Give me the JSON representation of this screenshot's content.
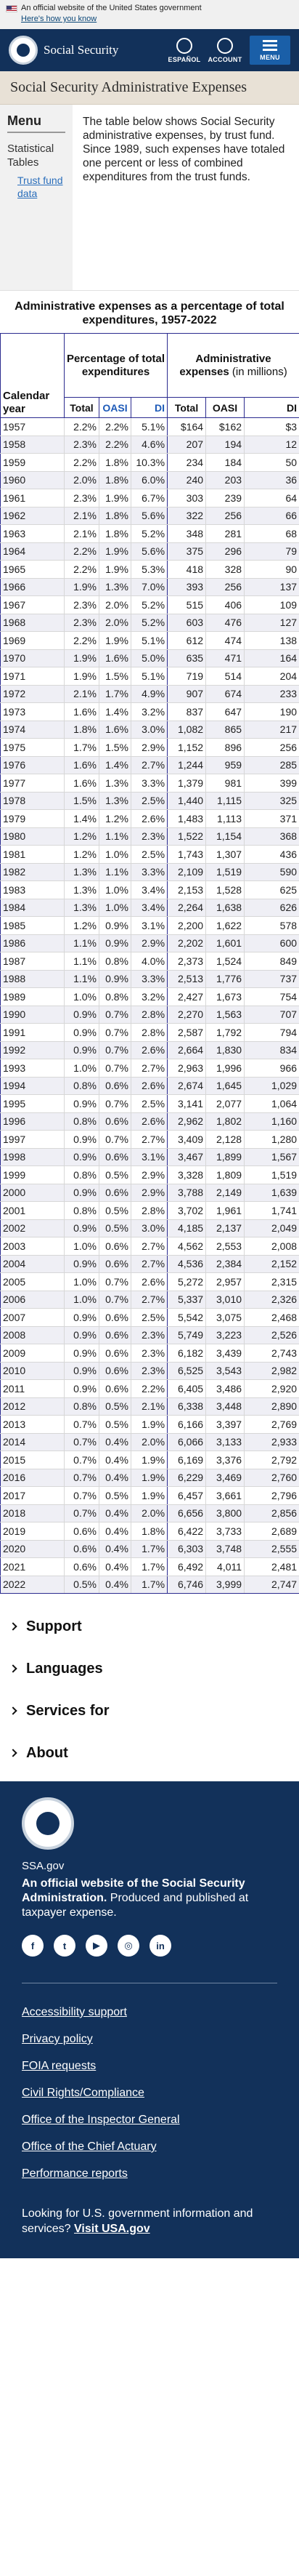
{
  "gov_banner": {
    "text": "An official website of the United States government",
    "link": "Here's how you know"
  },
  "header": {
    "logo_text": "Social Security",
    "espanol": "ESPAÑOL",
    "account": "ACCOUNT",
    "menu": "MENU"
  },
  "page_title": "Social Security Administrative Expenses",
  "sidebar": {
    "title": "Menu",
    "section": "Statistical Tables",
    "link": "Trust fund data"
  },
  "intro": "The table below shows Social Security administrative expenses, by trust fund. Since 1989, such expenses have totaled one percent or less of combined expenditures from the trust funds.",
  "table": {
    "caption": "Administrative expenses as a percentage of total expenditures, 1957-2022",
    "header_year": "Calendar year",
    "header_pct": "Percentage of total expenditures",
    "header_exp": "Administrative expenses",
    "header_exp_note": "(in millions)",
    "sub": [
      "Total",
      "OASI",
      "DI",
      "Total",
      "OASI",
      "DI"
    ],
    "rows": [
      [
        "1957",
        "2.2%",
        "2.2%",
        "5.1%",
        "$164",
        "$162",
        "$3"
      ],
      [
        "1958",
        "2.3%",
        "2.2%",
        "4.6%",
        "207",
        "194",
        "12"
      ],
      [
        "1959",
        "2.2%",
        "1.8%",
        "10.3%",
        "234",
        "184",
        "50"
      ],
      [
        "1960",
        "2.0%",
        "1.8%",
        "6.0%",
        "240",
        "203",
        "36"
      ],
      [
        "1961",
        "2.3%",
        "1.9%",
        "6.7%",
        "303",
        "239",
        "64"
      ],
      [
        "1962",
        "2.1%",
        "1.8%",
        "5.6%",
        "322",
        "256",
        "66"
      ],
      [
        "1963",
        "2.1%",
        "1.8%",
        "5.2%",
        "348",
        "281",
        "68"
      ],
      [
        "1964",
        "2.2%",
        "1.9%",
        "5.6%",
        "375",
        "296",
        "79"
      ],
      [
        "1965",
        "2.2%",
        "1.9%",
        "5.3%",
        "418",
        "328",
        "90"
      ],
      [
        "1966",
        "1.9%",
        "1.3%",
        "7.0%",
        "393",
        "256",
        "137"
      ],
      [
        "1967",
        "2.3%",
        "2.0%",
        "5.2%",
        "515",
        "406",
        "109"
      ],
      [
        "1968",
        "2.3%",
        "2.0%",
        "5.2%",
        "603",
        "476",
        "127"
      ],
      [
        "1969",
        "2.2%",
        "1.9%",
        "5.1%",
        "612",
        "474",
        "138"
      ],
      [
        "1970",
        "1.9%",
        "1.6%",
        "5.0%",
        "635",
        "471",
        "164"
      ],
      [
        "1971",
        "1.9%",
        "1.5%",
        "5.1%",
        "719",
        "514",
        "204"
      ],
      [
        "1972",
        "2.1%",
        "1.7%",
        "4.9%",
        "907",
        "674",
        "233"
      ],
      [
        "1973",
        "1.6%",
        "1.4%",
        "3.2%",
        "837",
        "647",
        "190"
      ],
      [
        "1974",
        "1.8%",
        "1.6%",
        "3.0%",
        "1,082",
        "865",
        "217"
      ],
      [
        "1975",
        "1.7%",
        "1.5%",
        "2.9%",
        "1,152",
        "896",
        "256"
      ],
      [
        "1976",
        "1.6%",
        "1.4%",
        "2.7%",
        "1,244",
        "959",
        "285"
      ],
      [
        "1977",
        "1.6%",
        "1.3%",
        "3.3%",
        "1,379",
        "981",
        "399"
      ],
      [
        "1978",
        "1.5%",
        "1.3%",
        "2.5%",
        "1,440",
        "1,115",
        "325"
      ],
      [
        "1979",
        "1.4%",
        "1.2%",
        "2.6%",
        "1,483",
        "1,113",
        "371"
      ],
      [
        "1980",
        "1.2%",
        "1.1%",
        "2.3%",
        "1,522",
        "1,154",
        "368"
      ],
      [
        "1981",
        "1.2%",
        "1.0%",
        "2.5%",
        "1,743",
        "1,307",
        "436"
      ],
      [
        "1982",
        "1.3%",
        "1.1%",
        "3.3%",
        "2,109",
        "1,519",
        "590"
      ],
      [
        "1983",
        "1.3%",
        "1.0%",
        "3.4%",
        "2,153",
        "1,528",
        "625"
      ],
      [
        "1984",
        "1.3%",
        "1.0%",
        "3.4%",
        "2,264",
        "1,638",
        "626"
      ],
      [
        "1985",
        "1.2%",
        "0.9%",
        "3.1%",
        "2,200",
        "1,622",
        "578"
      ],
      [
        "1986",
        "1.1%",
        "0.9%",
        "2.9%",
        "2,202",
        "1,601",
        "600"
      ],
      [
        "1987",
        "1.1%",
        "0.8%",
        "4.0%",
        "2,373",
        "1,524",
        "849"
      ],
      [
        "1988",
        "1.1%",
        "0.9%",
        "3.3%",
        "2,513",
        "1,776",
        "737"
      ],
      [
        "1989",
        "1.0%",
        "0.8%",
        "3.2%",
        "2,427",
        "1,673",
        "754"
      ],
      [
        "1990",
        "0.9%",
        "0.7%",
        "2.8%",
        "2,270",
        "1,563",
        "707"
      ],
      [
        "1991",
        "0.9%",
        "0.7%",
        "2.8%",
        "2,587",
        "1,792",
        "794"
      ],
      [
        "1992",
        "0.9%",
        "0.7%",
        "2.6%",
        "2,664",
        "1,830",
        "834"
      ],
      [
        "1993",
        "1.0%",
        "0.7%",
        "2.7%",
        "2,963",
        "1,996",
        "966"
      ],
      [
        "1994",
        "0.8%",
        "0.6%",
        "2.6%",
        "2,674",
        "1,645",
        "1,029"
      ],
      [
        "1995",
        "0.9%",
        "0.7%",
        "2.5%",
        "3,141",
        "2,077",
        "1,064"
      ],
      [
        "1996",
        "0.8%",
        "0.6%",
        "2.6%",
        "2,962",
        "1,802",
        "1,160"
      ],
      [
        "1997",
        "0.9%",
        "0.7%",
        "2.7%",
        "3,409",
        "2,128",
        "1,280"
      ],
      [
        "1998",
        "0.9%",
        "0.6%",
        "3.1%",
        "3,467",
        "1,899",
        "1,567"
      ],
      [
        "1999",
        "0.8%",
        "0.5%",
        "2.9%",
        "3,328",
        "1,809",
        "1,519"
      ],
      [
        "2000",
        "0.9%",
        "0.6%",
        "2.9%",
        "3,788",
        "2,149",
        "1,639"
      ],
      [
        "2001",
        "0.8%",
        "0.5%",
        "2.8%",
        "3,702",
        "1,961",
        "1,741"
      ],
      [
        "2002",
        "0.9%",
        "0.5%",
        "3.0%",
        "4,185",
        "2,137",
        "2,049"
      ],
      [
        "2003",
        "1.0%",
        "0.6%",
        "2.7%",
        "4,562",
        "2,553",
        "2,008"
      ],
      [
        "2004",
        "0.9%",
        "0.6%",
        "2.7%",
        "4,536",
        "2,384",
        "2,152"
      ],
      [
        "2005",
        "1.0%",
        "0.7%",
        "2.6%",
        "5,272",
        "2,957",
        "2,315"
      ],
      [
        "2006",
        "1.0%",
        "0.7%",
        "2.7%",
        "5,337",
        "3,010",
        "2,326"
      ],
      [
        "2007",
        "0.9%",
        "0.6%",
        "2.5%",
        "5,542",
        "3,075",
        "2,468"
      ],
      [
        "2008",
        "0.9%",
        "0.6%",
        "2.3%",
        "5,749",
        "3,223",
        "2,526"
      ],
      [
        "2009",
        "0.9%",
        "0.6%",
        "2.3%",
        "6,182",
        "3,439",
        "2,743"
      ],
      [
        "2010",
        "0.9%",
        "0.6%",
        "2.3%",
        "6,525",
        "3,543",
        "2,982"
      ],
      [
        "2011",
        "0.9%",
        "0.6%",
        "2.2%",
        "6,405",
        "3,486",
        "2,920"
      ],
      [
        "2012",
        "0.8%",
        "0.5%",
        "2.1%",
        "6,338",
        "3,448",
        "2,890"
      ],
      [
        "2013",
        "0.7%",
        "0.5%",
        "1.9%",
        "6,166",
        "3,397",
        "2,769"
      ],
      [
        "2014",
        "0.7%",
        "0.4%",
        "2.0%",
        "6,066",
        "3,133",
        "2,933"
      ],
      [
        "2015",
        "0.7%",
        "0.4%",
        "1.9%",
        "6,169",
        "3,376",
        "2,792"
      ],
      [
        "2016",
        "0.7%",
        "0.4%",
        "1.9%",
        "6,229",
        "3,469",
        "2,760"
      ],
      [
        "2017",
        "0.7%",
        "0.5%",
        "1.9%",
        "6,457",
        "3,661",
        "2,796"
      ],
      [
        "2018",
        "0.7%",
        "0.4%",
        "2.0%",
        "6,656",
        "3,800",
        "2,856"
      ],
      [
        "2019",
        "0.6%",
        "0.4%",
        "1.8%",
        "6,422",
        "3,733",
        "2,689"
      ],
      [
        "2020",
        "0.6%",
        "0.4%",
        "1.7%",
        "6,303",
        "3,748",
        "2,555"
      ],
      [
        "2021",
        "0.6%",
        "0.4%",
        "1.7%",
        "6,492",
        "4,011",
        "2,481"
      ],
      [
        "2022",
        "0.5%",
        "0.4%",
        "1.7%",
        "6,746",
        "3,999",
        "2,747"
      ]
    ]
  },
  "accordion": [
    "Support",
    "Languages",
    "Services for",
    "About"
  ],
  "footer": {
    "domain": "SSA.gov",
    "official_bold": "An official website of the Social Security Administration.",
    "official_rest": " Produced and published at taxpayer expense.",
    "socials": [
      "f",
      "t",
      "▶",
      "◎",
      "in"
    ],
    "links": [
      "Accessibility support",
      "Privacy policy",
      "FOIA requests",
      "Civil Rights/Compliance",
      "Office of the Inspector General",
      "Office of the Chief Actuary",
      "Performance reports"
    ],
    "help_text": "Looking for U.S. government information and services?",
    "help_link": "Visit USA.gov"
  }
}
